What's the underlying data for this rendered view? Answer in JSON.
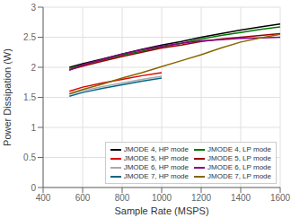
{
  "chart_data": {
    "type": "line",
    "xlabel": "Sample Rate (MSPS)",
    "ylabel": "Power Dissipation (W)",
    "xlim": [
      400,
      1600
    ],
    "ylim": [
      0,
      3
    ],
    "xticks": [
      400,
      600,
      800,
      1000,
      1200,
      1400,
      1600
    ],
    "yticks": [
      0,
      0.5,
      1,
      1.5,
      2,
      2.5,
      3
    ],
    "grid": true,
    "legend": "lower right",
    "series": [
      {
        "name": "JMODE 4, HP mode",
        "color": "#000000",
        "x": [
          533,
          600,
          700,
          800,
          900,
          1000,
          1100,
          1200,
          1300,
          1400,
          1500,
          1600
        ],
        "values": [
          2.0,
          2.06,
          2.14,
          2.22,
          2.3,
          2.37,
          2.43,
          2.5,
          2.56,
          2.62,
          2.67,
          2.72
        ]
      },
      {
        "name": "JMODE 4, LP mode",
        "color": "#007700",
        "x": [
          533,
          600,
          700,
          800,
          900,
          1000,
          1100,
          1200,
          1300,
          1400,
          1500,
          1600
        ],
        "values": [
          1.98,
          2.04,
          2.12,
          2.2,
          2.27,
          2.34,
          2.4,
          2.47,
          2.53,
          2.58,
          2.63,
          2.67
        ]
      },
      {
        "name": "JMODE 5, HP mode",
        "color": "#dd0000",
        "x": [
          533,
          600,
          700,
          800,
          900,
          1000
        ],
        "values": [
          1.6,
          1.67,
          1.74,
          1.8,
          1.86,
          1.91
        ]
      },
      {
        "name": "JMODE 5, LP mode",
        "color": "#990000",
        "x": [
          533,
          600,
          700,
          800,
          900,
          1000,
          1100,
          1200,
          1300,
          1400,
          1500,
          1600
        ],
        "values": [
          1.96,
          2.02,
          2.1,
          2.18,
          2.25,
          2.32,
          2.37,
          2.43,
          2.47,
          2.5,
          2.53,
          2.56
        ]
      },
      {
        "name": "JMODE 6, HP mode",
        "color": "#aaaaaa",
        "x": [
          533,
          600,
          700,
          800,
          900,
          1000
        ],
        "values": [
          1.55,
          1.61,
          1.68,
          1.74,
          1.8,
          1.85
        ]
      },
      {
        "name": "JMODE 6, LP mode",
        "color": "#880088",
        "x": [
          533,
          600,
          700,
          800,
          900,
          1000,
          1100,
          1200,
          1300,
          1400,
          1500,
          1600
        ],
        "values": [
          1.95,
          2.04,
          2.13,
          2.22,
          2.29,
          2.35,
          2.4,
          2.44,
          2.46,
          2.48,
          2.49,
          2.5
        ]
      },
      {
        "name": "JMODE 7, HP mode",
        "color": "#006688",
        "x": [
          533,
          600,
          700,
          800,
          900,
          1000
        ],
        "values": [
          1.52,
          1.58,
          1.65,
          1.71,
          1.77,
          1.82
        ]
      },
      {
        "name": "JMODE 7, LP mode",
        "color": "#886600",
        "x": [
          533,
          600,
          700,
          800,
          900,
          1000,
          1100,
          1200,
          1300,
          1400,
          1500,
          1600
        ],
        "values": [
          1.56,
          1.63,
          1.72,
          1.82,
          1.91,
          2.01,
          2.11,
          2.21,
          2.32,
          2.42,
          2.49,
          2.55
        ]
      }
    ]
  }
}
